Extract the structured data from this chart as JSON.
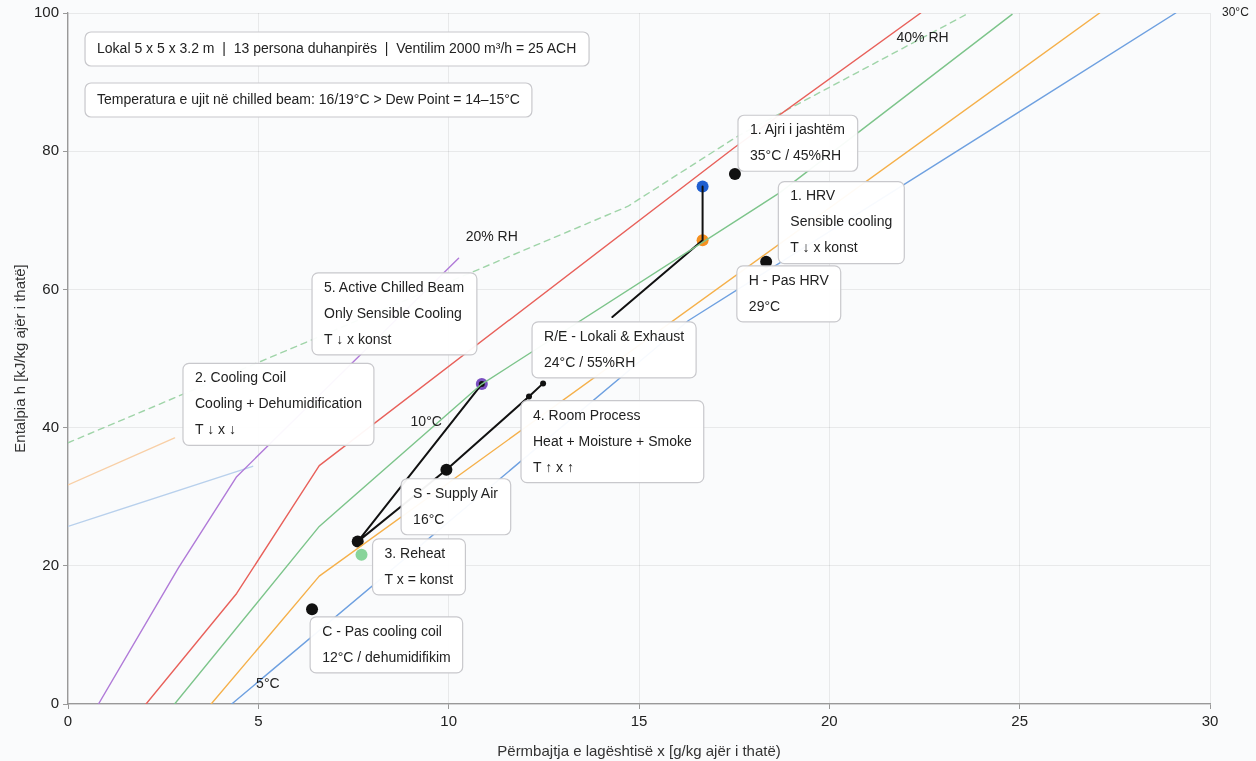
{
  "chart_data": {
    "type": "line",
    "xlabel": "Përmbajtja e lagështisë x [g/kg ajër i thatë)",
    "ylabel": "Entalpia h [kJ/kg ajër i thatë]",
    "xlim": [
      0,
      30
    ],
    "xticks": [
      0,
      5,
      10,
      15,
      20,
      25,
      30
    ],
    "ylim": [
      0,
      100
    ],
    "yticks": [
      0,
      20,
      40,
      60,
      80,
      100
    ],
    "grid": true,
    "series": [
      {
        "type": "line",
        "color": "#b07ad8",
        "x": [
          0.8,
          2.9,
          4.43,
          10.26
        ],
        "values": [
          0,
          19.7,
          32.9,
          64.5
        ]
      },
      {
        "type": "line",
        "color": "#e8605a",
        "x": [
          2.05,
          4.43,
          6.6,
          17.5,
          22.4
        ],
        "values": [
          0,
          16,
          34.5,
          80.5,
          100
        ]
      },
      {
        "type": "line",
        "color": "#9fd4a8",
        "line_style": "dashed",
        "x": [
          0,
          14.7,
          17.6,
          23.6
        ],
        "values": [
          37.8,
          72,
          82.2,
          99.8
        ]
      },
      {
        "type": "line",
        "color": "#7cc48a",
        "x": [
          2.8,
          6.6,
          10.87,
          18.7,
          24.8
        ],
        "values": [
          0,
          25.7,
          46.3,
          74,
          99.8
        ]
      },
      {
        "type": "line",
        "color": "#f5b04a",
        "x": [
          3.76,
          6.6,
          27.1
        ],
        "values": [
          0,
          18.5,
          100
        ]
      },
      {
        "type": "line",
        "color": "#6ea0e0",
        "x": [
          4.3,
          16.3,
          29.1
        ],
        "values": [
          0,
          55.5,
          100
        ]
      },
      {
        "type": "line",
        "color": "#f8cfa6",
        "x": [
          0,
          2.8
        ],
        "values": [
          31.7,
          38.5
        ]
      },
      {
        "type": "line",
        "color": "#b8d0ec",
        "x": [
          0,
          4.85
        ],
        "values": [
          25.7,
          34.4
        ]
      },
      {
        "type": "line",
        "color": "#111111",
        "x": [
          16.67,
          16.67,
          14.3
        ],
        "values": [
          74.9,
          67.1,
          56
        ]
      },
      {
        "type": "line",
        "color": "#111111",
        "marker": "circle",
        "x": [
          10.87,
          7.61,
          9.94,
          12.11,
          12.48
        ],
        "values": [
          46.3,
          23.5,
          33.9,
          44.5,
          46.4
        ]
      },
      {
        "type": "scatter",
        "color": "#1f5fd0",
        "x": [
          16.67
        ],
        "values": [
          74.9
        ]
      },
      {
        "type": "scatter",
        "color": "#f59020",
        "x": [
          16.67
        ],
        "values": [
          67.1
        ]
      },
      {
        "type": "scatter",
        "color": "#7a4fc0",
        "x": [
          10.87
        ],
        "values": [
          46.3
        ]
      },
      {
        "type": "scatter",
        "color": "#111111",
        "x": [
          7.61,
          9.94,
          6.41,
          17.52,
          18.34
        ],
        "values": [
          23.5,
          33.9,
          13.7,
          76.7,
          64
        ]
      },
      {
        "type": "scatter",
        "color": "#88d49a",
        "x": [
          7.71
        ],
        "values": [
          21.6
        ]
      }
    ],
    "annotations": [
      "Lokal 5 x 5 x 3.2 m  |  13 persona duhanpirës  |  Ventilim 2000 m³/h = 25 ACH",
      "Temperatura e ujit në chilled beam: 16/19°C > Dew Point = 14–15°C",
      "20% RH",
      "40% RH",
      "10°C",
      "5°C",
      "30°C",
      "1. Ajri i jashtëm\n35°C / 45%RH",
      "1. HRV\nSensible cooling\nT ↓ x konst",
      "H - Pas HRV\n29°C",
      "5. Active Chilled Beam\nOnly Sensible Cooling\nT ↓ x konst",
      "R/E - Lokali & Exhaust\n24°C / 55%RH",
      "2. Cooling Coil\nCooling + Dehumidification\nT ↓ x ↓",
      "4. Room Process\nHeat + Moisture + Smoke\nT ↑ x ↑",
      "S - Supply Air\n16°C",
      "3. Reheat\nT x = konst",
      "C - Pas cooling coil\n12°C / dehumidifikim"
    ]
  }
}
